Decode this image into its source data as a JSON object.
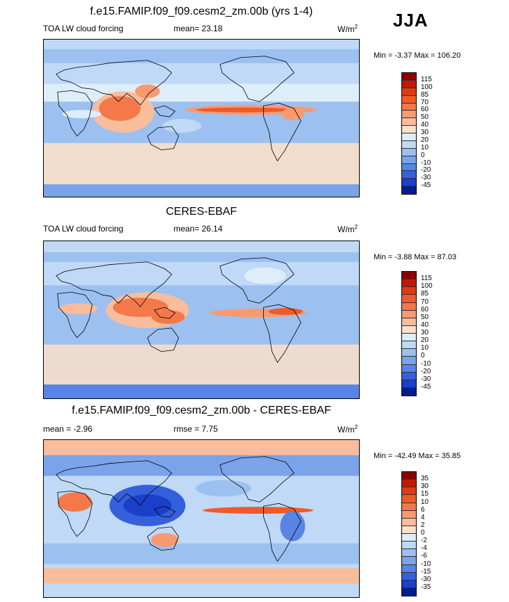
{
  "season": "JJA",
  "chart_data": [
    {
      "type": "heatmap",
      "title": "f.e15.FAMIP.f09_f09.cesm2_zm.00b (yrs 1-4)",
      "variable": "TOA LW cloud forcing",
      "stat_label": "mean=",
      "stat_value": "23.18",
      "units_base": "W/m",
      "units_exp": "2",
      "min_label": "Min =",
      "min": "-3.37",
      "max_label": "Max =",
      "max": "106.20",
      "colorbar": {
        "levels": [
          "115",
          "100",
          "85",
          "70",
          "60",
          "50",
          "40",
          "30",
          "20",
          "10",
          "0",
          "-10",
          "-20",
          "-30",
          "-45"
        ],
        "colors": [
          "#8b0000",
          "#c01a00",
          "#e03a10",
          "#ee5a2a",
          "#f4784a",
          "#f79a70",
          "#f9bd9b",
          "#fbe0c8",
          "#ddeefa",
          "#bfd9f6",
          "#9cc0f0",
          "#7aa3ea",
          "#5884e4",
          "#3560dc",
          "#1a3fc8",
          "#001d8f"
        ]
      }
    },
    {
      "type": "heatmap",
      "title": "CERES-EBAF",
      "variable": "TOA LW cloud forcing",
      "stat_label": "mean=",
      "stat_value": "26.14",
      "units_base": "W/m",
      "units_exp": "2",
      "min_label": "Min =",
      "min": "-3.88",
      "max_label": "Max =",
      "max": "87.03",
      "colorbar": {
        "levels": [
          "115",
          "100",
          "85",
          "70",
          "60",
          "50",
          "40",
          "30",
          "20",
          "10",
          "0",
          "-10",
          "-20",
          "-30",
          "-45"
        ],
        "colors": [
          "#8b0000",
          "#c01a00",
          "#e03a10",
          "#ee5a2a",
          "#f4784a",
          "#f79a70",
          "#f9bd9b",
          "#fbe0c8",
          "#ddeefa",
          "#bfd9f6",
          "#9cc0f0",
          "#7aa3ea",
          "#5884e4",
          "#3560dc",
          "#1a3fc8",
          "#001d8f"
        ]
      }
    },
    {
      "type": "heatmap",
      "title": "f.e15.FAMIP.f09_f09.cesm2_zm.00b - CERES-EBAF",
      "variable": "",
      "stat_label": "mean =",
      "stat_value": "-2.96",
      "stat2_label": "rmse =",
      "stat2_value": "7.75",
      "units_base": "W/m",
      "units_exp": "2",
      "min_label": "Min =",
      "min": "-42.49",
      "max_label": "Max =",
      "max": "35.85",
      "colorbar": {
        "levels": [
          "35",
          "30",
          "15",
          "10",
          "6",
          "4",
          "2",
          "0",
          "-2",
          "-4",
          "-6",
          "-10",
          "-15",
          "-30",
          "-35"
        ],
        "colors": [
          "#8b0000",
          "#c01a00",
          "#e03a10",
          "#ee5a2a",
          "#f4784a",
          "#f79a70",
          "#f9bd9b",
          "#fbe0c8",
          "#ddeefa",
          "#bfd9f6",
          "#9cc0f0",
          "#7aa3ea",
          "#5884e4",
          "#3560dc",
          "#1a3fc8",
          "#001d8f"
        ]
      }
    }
  ]
}
